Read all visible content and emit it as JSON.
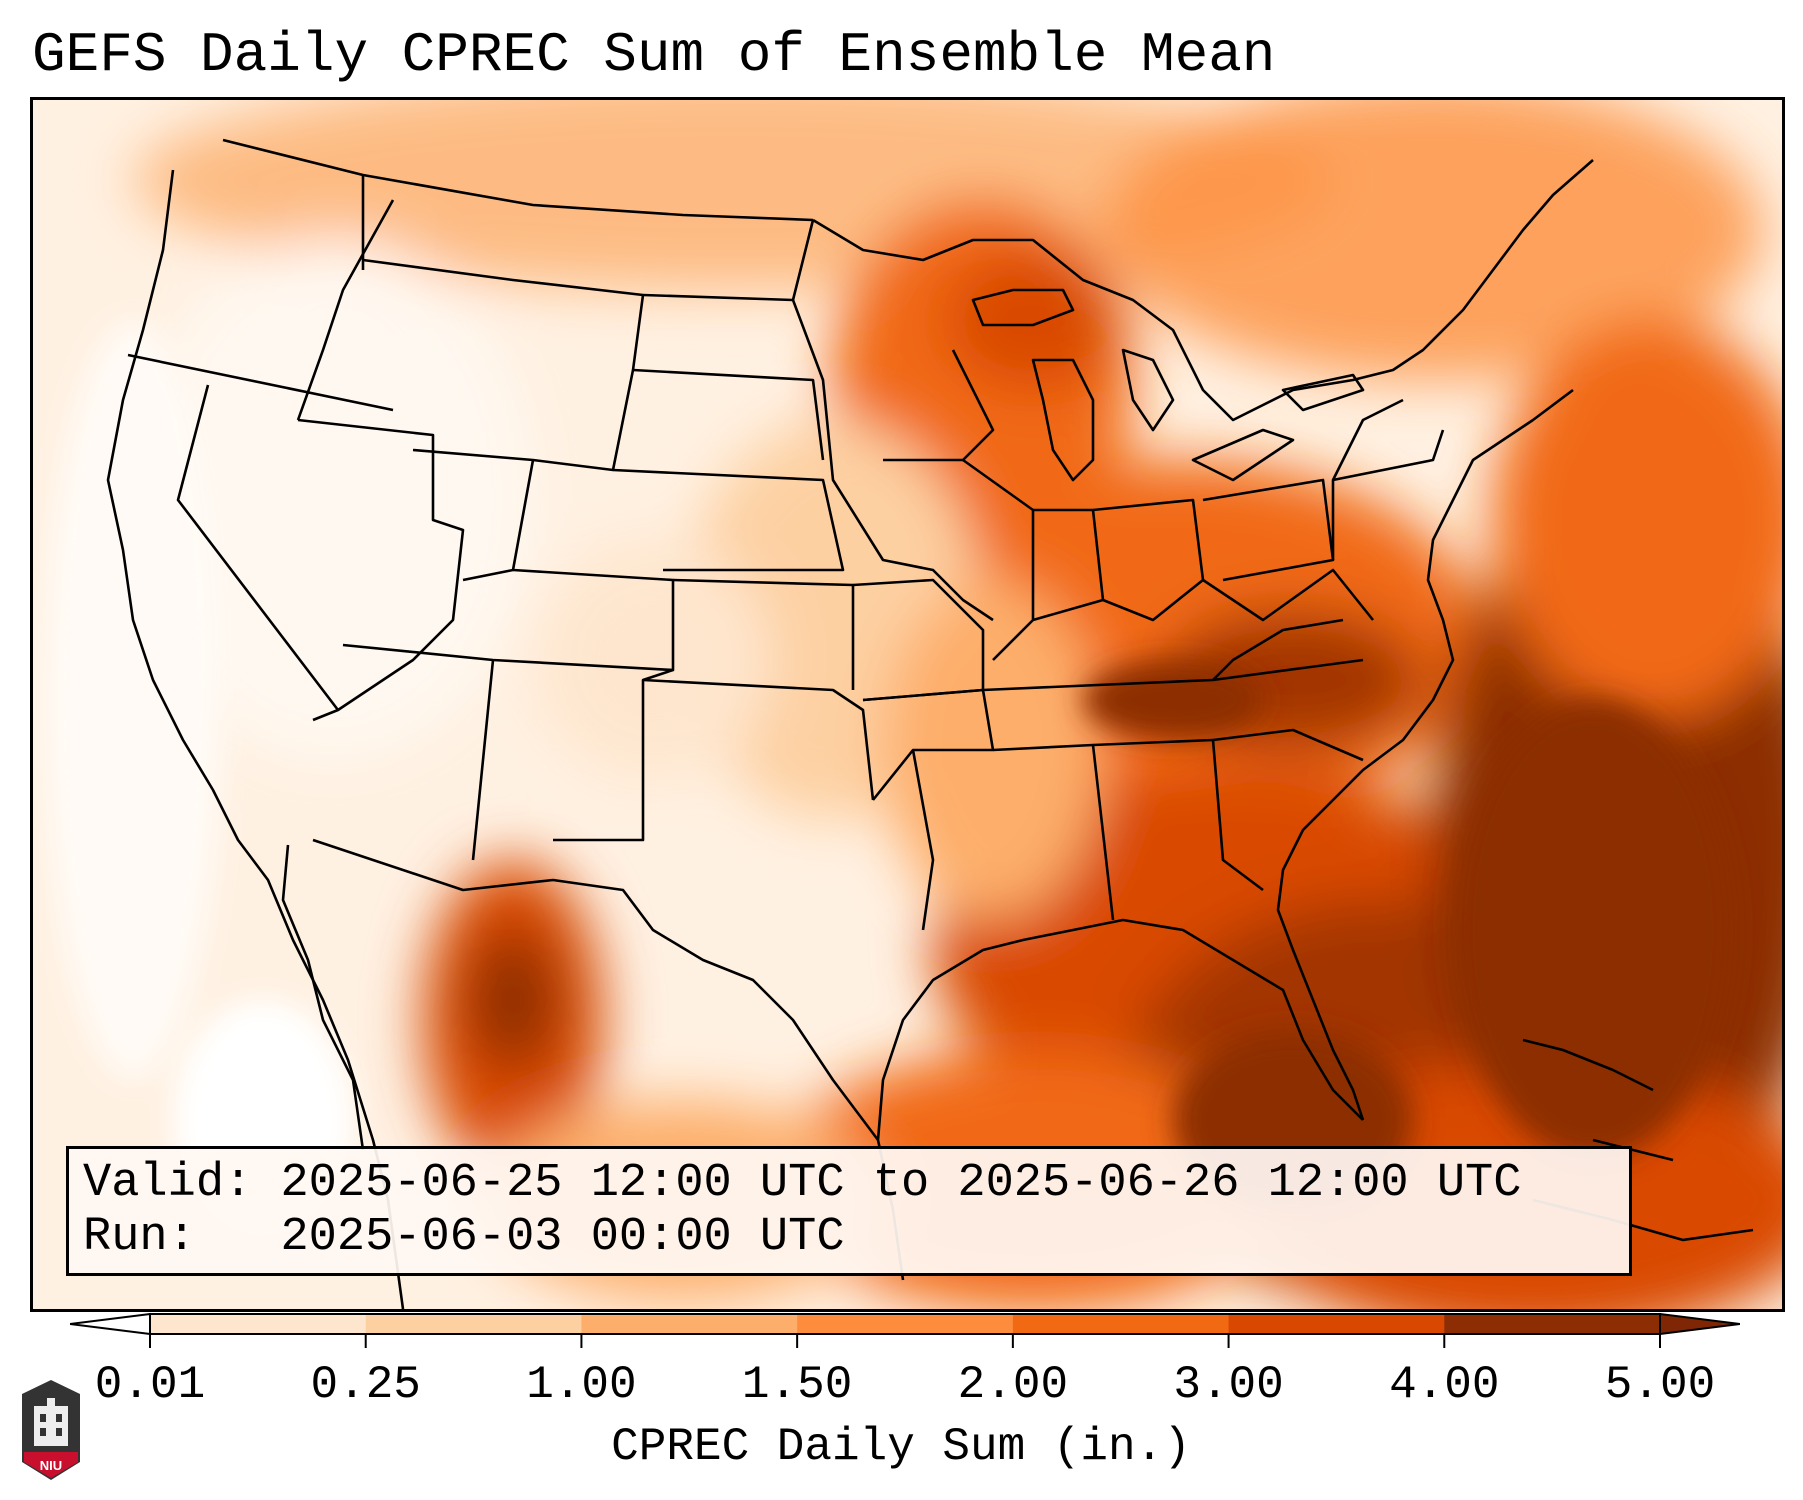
{
  "title": "GEFS Daily CPREC Sum of Ensemble Mean",
  "info": {
    "valid_label": "Valid:",
    "valid_value": "2025-06-25 12:00 UTC to 2025-06-26 12:00 UTC",
    "run_label": "Run:",
    "run_value": "2025-06-03 00:00 UTC"
  },
  "colorbar": {
    "label": "CPREC Daily Sum (in.)",
    "ticks": [
      "0.01",
      "0.25",
      "1.00",
      "1.50",
      "2.00",
      "3.00",
      "4.00",
      "5.00"
    ],
    "colors": [
      "#fff5eb",
      "#fee6ce",
      "#fdd0a2",
      "#fdae6b",
      "#fd8d3c",
      "#f16913",
      "#d94801",
      "#8c2d04"
    ],
    "under_color": "#ffffff",
    "over_color": "#7f2704",
    "extend": "both"
  },
  "map": {
    "region": "Contiguous United States",
    "boundaries": "state and country borders, black"
  },
  "logo": {
    "text": "NIU",
    "colors": [
      "#333333",
      "#c8102e"
    ]
  }
}
